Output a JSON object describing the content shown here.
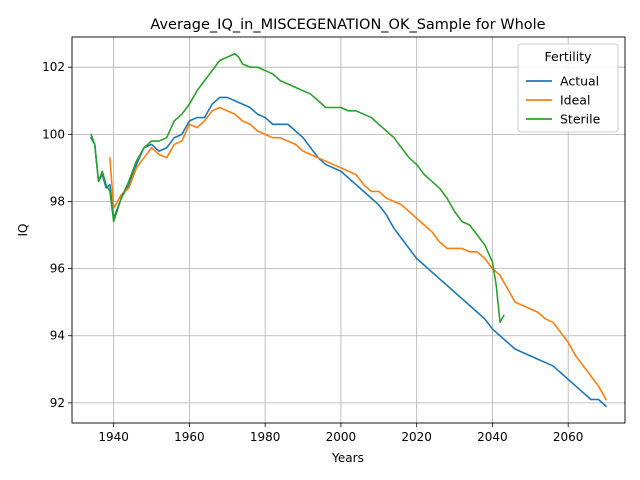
{
  "chart_data": {
    "type": "line",
    "title": "Average_IQ_in_MISCEGENATION_OK_Sample for Whole",
    "xlabel": "Years",
    "ylabel": "IQ",
    "xlim": [
      1929,
      2075
    ],
    "ylim": [
      91.4,
      102.9
    ],
    "xticks": [
      1940,
      1960,
      1980,
      2000,
      2020,
      2040,
      2060
    ],
    "yticks": [
      92,
      94,
      96,
      98,
      100,
      102
    ],
    "grid": true,
    "legend": {
      "title": "Fertility",
      "placement": "top-right"
    },
    "colors": {
      "Actual": "#1f77b4",
      "Ideal": "#ff7f0e",
      "Sterile": "#2ca02c"
    },
    "series": [
      {
        "name": "Actual",
        "x": [
          1934,
          1935,
          1936,
          1937,
          1938,
          1939,
          1940,
          1942,
          1944,
          1946,
          1948,
          1950,
          1952,
          1954,
          1956,
          1958,
          1960,
          1962,
          1964,
          1966,
          1968,
          1970,
          1972,
          1974,
          1976,
          1978,
          1980,
          1982,
          1984,
          1986,
          1988,
          1990,
          1992,
          1994,
          1996,
          1998,
          2000,
          2002,
          2004,
          2006,
          2008,
          2010,
          2012,
          2014,
          2016,
          2018,
          2020,
          2022,
          2024,
          2026,
          2028,
          2030,
          2032,
          2034,
          2036,
          2038,
          2040,
          2042,
          2044,
          2046,
          2048,
          2050,
          2052,
          2054,
          2056,
          2058,
          2060,
          2062,
          2064,
          2066,
          2068,
          2070
        ],
        "values": [
          99.9,
          99.7,
          98.6,
          98.8,
          98.4,
          98.5,
          97.5,
          98.1,
          98.5,
          99.1,
          99.6,
          99.7,
          99.5,
          99.6,
          99.9,
          100.0,
          100.4,
          100.5,
          100.5,
          100.9,
          101.1,
          101.1,
          101.0,
          100.9,
          100.8,
          100.6,
          100.5,
          100.3,
          100.3,
          100.3,
          100.1,
          99.9,
          99.6,
          99.3,
          99.1,
          99.0,
          98.9,
          98.7,
          98.5,
          98.3,
          98.1,
          97.9,
          97.6,
          97.2,
          96.9,
          96.6,
          96.3,
          96.1,
          95.9,
          95.7,
          95.5,
          95.3,
          95.1,
          94.9,
          94.7,
          94.5,
          94.2,
          94.0,
          93.8,
          93.6,
          93.5,
          93.4,
          93.3,
          93.2,
          93.1,
          92.9,
          92.7,
          92.5,
          92.3,
          92.1,
          92.1,
          91.9
        ]
      },
      {
        "name": "Ideal",
        "x": [
          1939,
          1940,
          1942,
          1944,
          1946,
          1948,
          1950,
          1952,
          1954,
          1956,
          1958,
          1960,
          1962,
          1964,
          1966,
          1968,
          1970,
          1972,
          1974,
          1976,
          1978,
          1980,
          1982,
          1984,
          1986,
          1988,
          1990,
          1992,
          1994,
          1996,
          1998,
          2000,
          2002,
          2004,
          2006,
          2008,
          2010,
          2012,
          2014,
          2016,
          2018,
          2020,
          2022,
          2024,
          2026,
          2028,
          2030,
          2032,
          2034,
          2036,
          2038,
          2040,
          2042,
          2044,
          2046,
          2048,
          2050,
          2052,
          2054,
          2056,
          2058,
          2060,
          2062,
          2064,
          2066,
          2068,
          2070
        ],
        "values": [
          99.3,
          97.8,
          98.2,
          98.4,
          99.0,
          99.3,
          99.6,
          99.4,
          99.3,
          99.7,
          99.8,
          100.3,
          100.2,
          100.4,
          100.7,
          100.8,
          100.7,
          100.6,
          100.4,
          100.3,
          100.1,
          100.0,
          99.9,
          99.9,
          99.8,
          99.7,
          99.5,
          99.4,
          99.3,
          99.2,
          99.1,
          99.0,
          98.9,
          98.8,
          98.5,
          98.3,
          98.3,
          98.1,
          98.0,
          97.9,
          97.7,
          97.5,
          97.3,
          97.1,
          96.8,
          96.6,
          96.6,
          96.6,
          96.5,
          96.5,
          96.3,
          96.0,
          95.8,
          95.4,
          95.0,
          94.9,
          94.8,
          94.7,
          94.5,
          94.4,
          94.1,
          93.8,
          93.4,
          93.1,
          92.8,
          92.5,
          92.1
        ]
      },
      {
        "name": "Sterile",
        "x": [
          1934,
          1935,
          1936,
          1937,
          1938,
          1939,
          1940,
          1942,
          1944,
          1946,
          1948,
          1950,
          1952,
          1954,
          1956,
          1958,
          1960,
          1962,
          1964,
          1966,
          1968,
          1970,
          1972,
          1973,
          1974,
          1976,
          1978,
          1980,
          1982,
          1984,
          1986,
          1988,
          1990,
          1992,
          1994,
          1996,
          1998,
          2000,
          2002,
          2004,
          2006,
          2008,
          2010,
          2012,
          2014,
          2016,
          2018,
          2020,
          2022,
          2024,
          2026,
          2028,
          2030,
          2032,
          2034,
          2036,
          2038,
          2040,
          2041,
          2042,
          2043
        ],
        "values": [
          100.0,
          99.7,
          98.6,
          98.9,
          98.5,
          98.3,
          97.4,
          98.1,
          98.6,
          99.2,
          99.6,
          99.8,
          99.8,
          99.9,
          100.4,
          100.6,
          100.9,
          101.3,
          101.6,
          101.9,
          102.2,
          102.3,
          102.4,
          102.3,
          102.1,
          102.0,
          102.0,
          101.9,
          101.8,
          101.6,
          101.5,
          101.4,
          101.3,
          101.2,
          101.0,
          100.8,
          100.8,
          100.8,
          100.7,
          100.7,
          100.6,
          100.5,
          100.3,
          100.1,
          99.9,
          99.6,
          99.3,
          99.1,
          98.8,
          98.6,
          98.4,
          98.1,
          97.7,
          97.4,
          97.3,
          97.0,
          96.7,
          96.2,
          95.5,
          94.4,
          94.6
        ]
      }
    ]
  }
}
